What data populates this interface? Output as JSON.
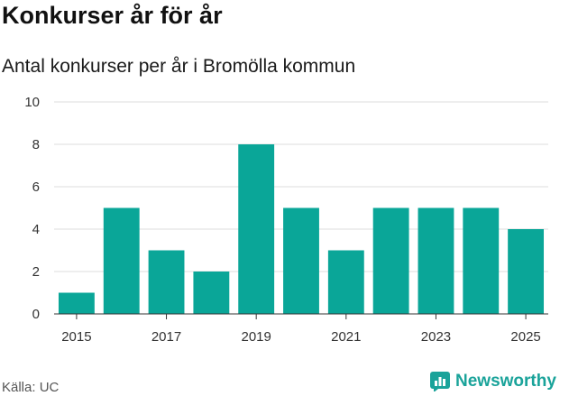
{
  "header": {
    "title": "Konkurser år för år",
    "subtitle": "Antal konkurser per år i Bromölla kommun"
  },
  "footer": {
    "source": "Källa: UC",
    "brand": "Newsworthy",
    "brand_icon": "bar-chart-logo-icon"
  },
  "colors": {
    "bar": "#0aa698",
    "grid": "#dddddd",
    "brand": "#1aa39a"
  },
  "chart_data": {
    "type": "bar",
    "title": "Konkurser år för år",
    "subtitle": "Antal konkurser per år i Bromölla kommun",
    "xlabel": "",
    "ylabel": "",
    "categories": [
      "2015",
      "2016",
      "2017",
      "2018",
      "2019",
      "2020",
      "2021",
      "2022",
      "2023",
      "2024",
      "2025"
    ],
    "values": [
      1,
      5,
      3,
      2,
      8,
      5,
      3,
      5,
      5,
      5,
      4
    ],
    "x_tick_labels": [
      "2015",
      "2017",
      "2019",
      "2021",
      "2023",
      "2025"
    ],
    "y_ticks": [
      0,
      2,
      4,
      6,
      8,
      10
    ],
    "ylim": [
      0,
      10
    ],
    "grid": true,
    "legend": "none"
  }
}
